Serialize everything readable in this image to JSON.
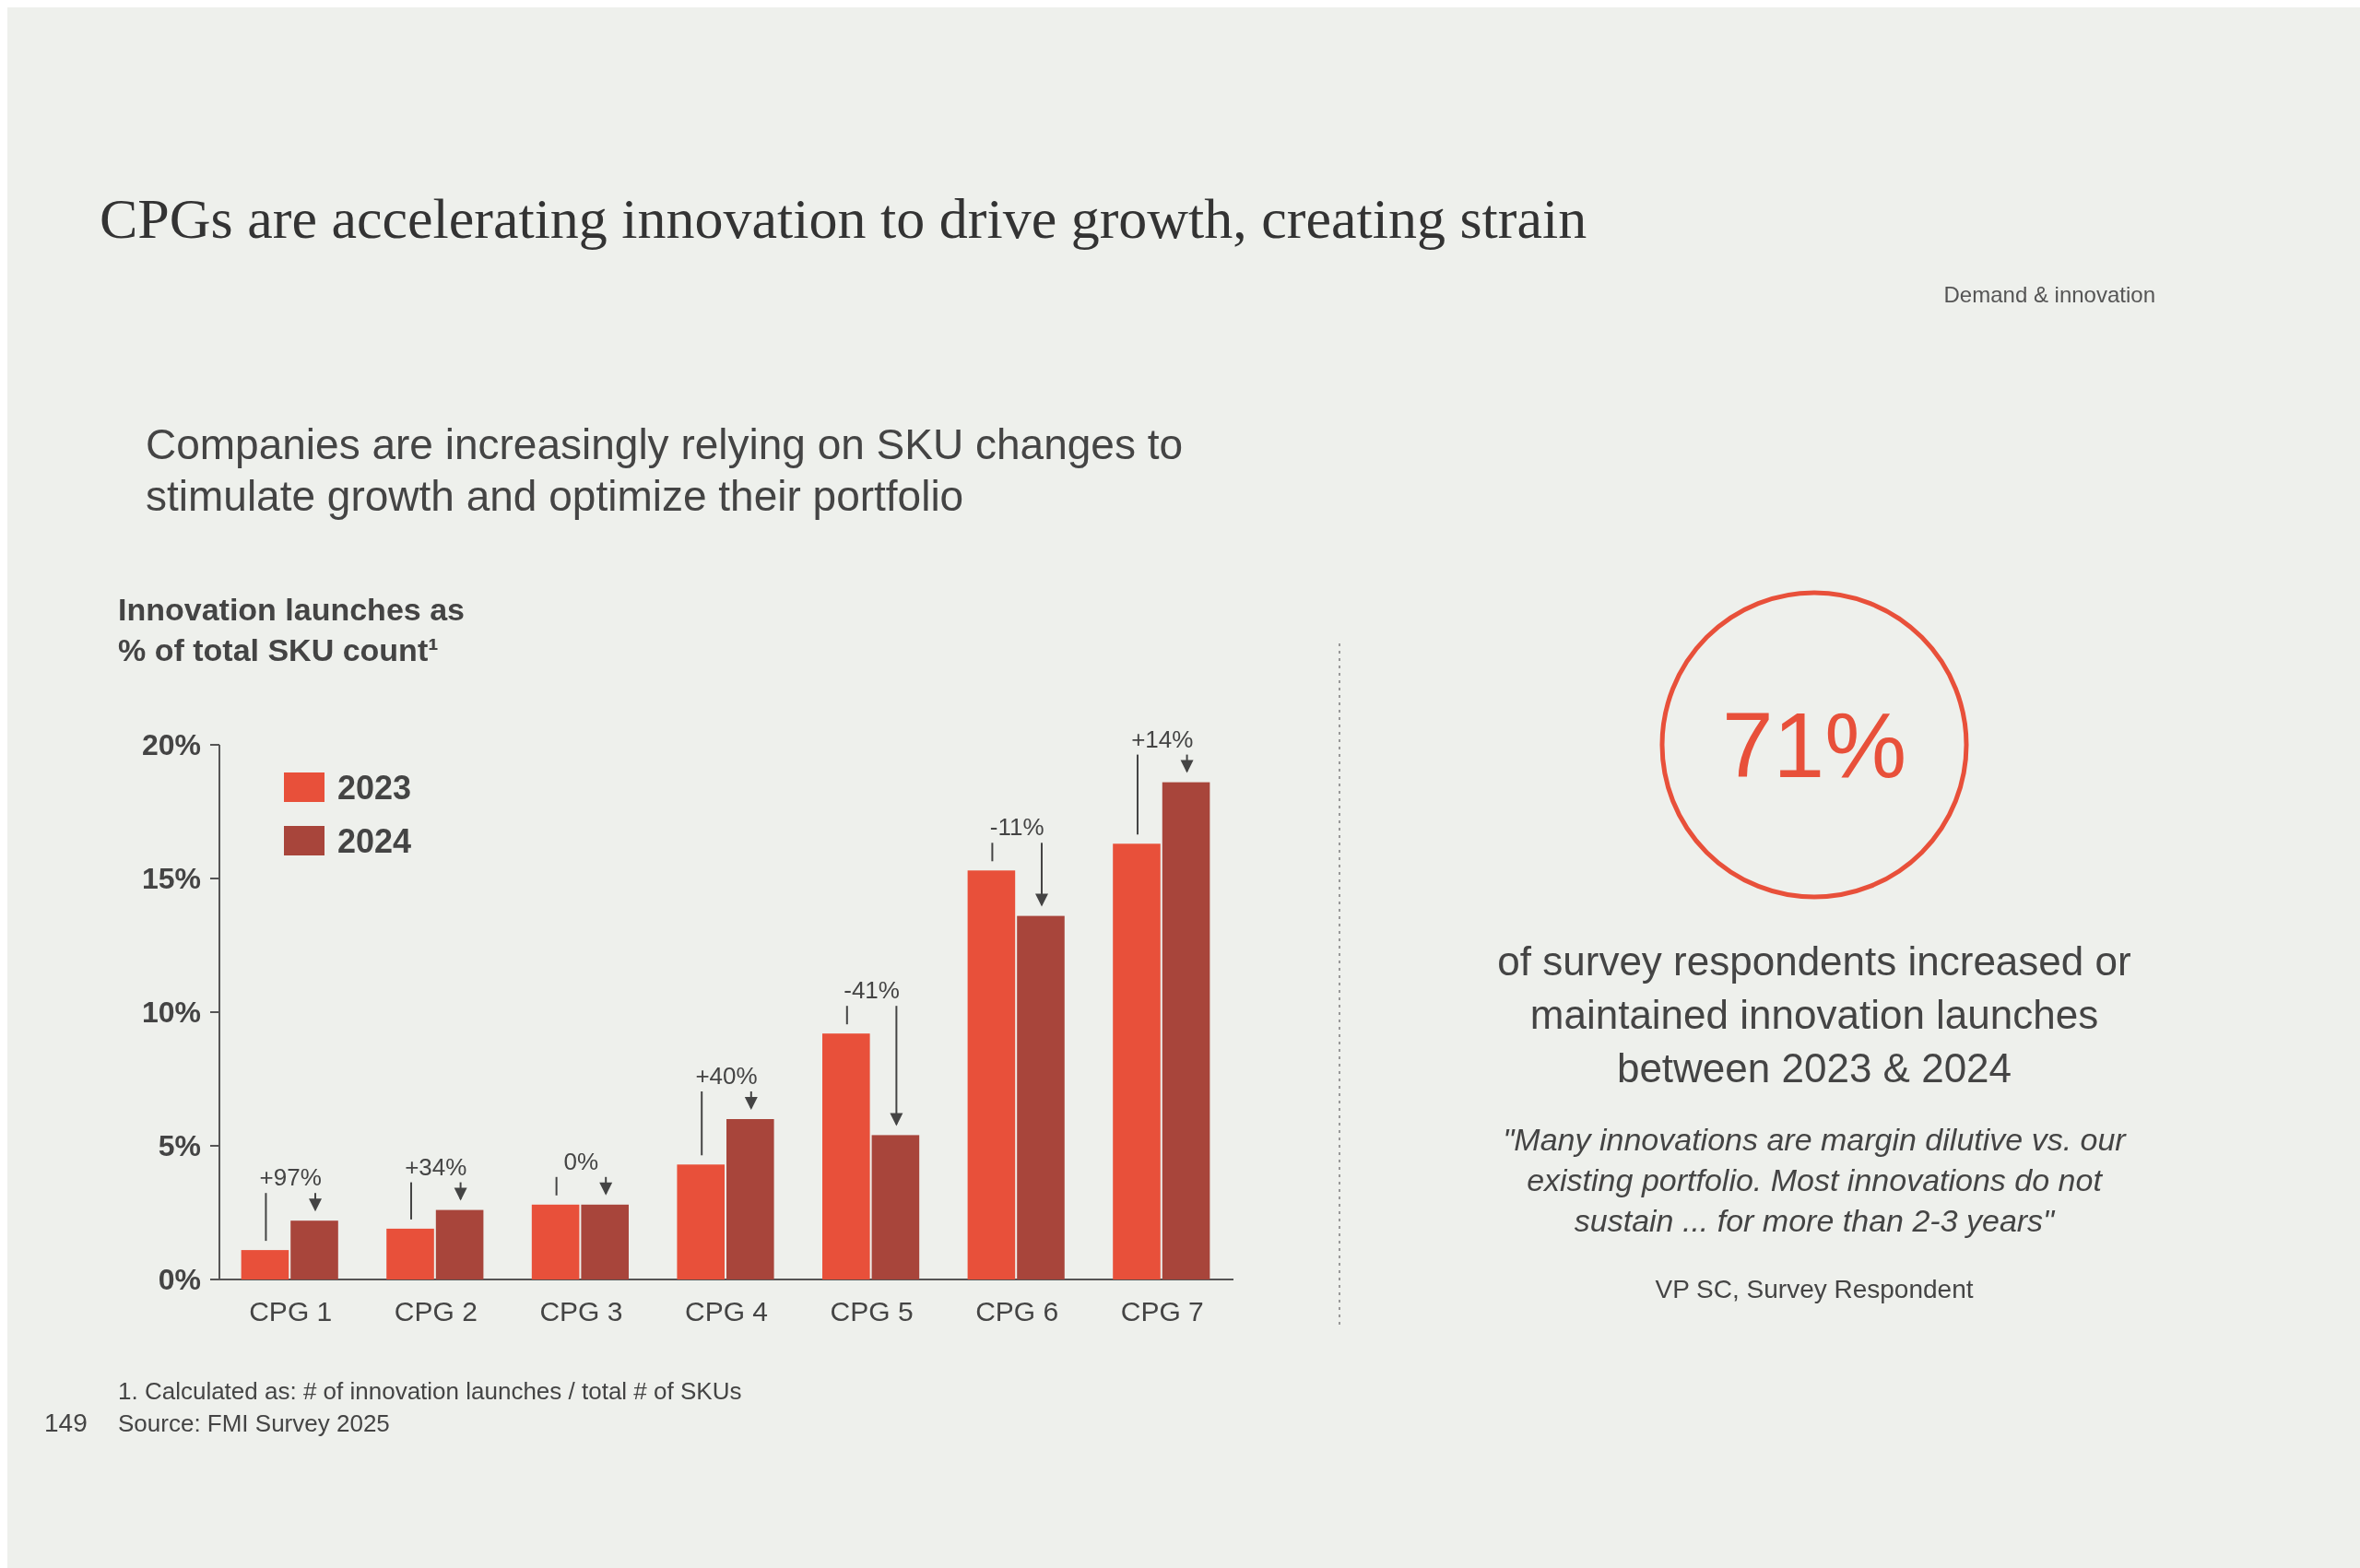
{
  "chart_data": {
    "type": "bar",
    "title": "CPGs are accelerating innovation to drive growth, creating strain",
    "subtitle": "Companies are increasingly relying on SKU changes to stimulate growth and optimize their portfolio",
    "ylabel": "Innovation launches as % of total SKU count¹",
    "categories": [
      "CPG 1",
      "CPG 2",
      "CPG 3",
      "CPG 4",
      "CPG 5",
      "CPG 6",
      "CPG 7"
    ],
    "series": [
      {
        "name": "2023",
        "color": "#e8503a",
        "values": [
          1.1,
          1.9,
          2.8,
          4.3,
          9.2,
          15.3,
          16.3
        ]
      },
      {
        "name": "2024",
        "color": "#a8453b",
        "values": [
          2.2,
          2.6,
          2.8,
          6.0,
          5.4,
          13.6,
          18.6
        ]
      }
    ],
    "ylim": [
      0,
      20
    ],
    "yticks": [
      {
        "value": 0,
        "label": "0%"
      },
      {
        "value": 5,
        "label": "5%"
      },
      {
        "value": 10,
        "label": "10%"
      },
      {
        "value": 15,
        "label": "15%"
      },
      {
        "value": 20,
        "label": "20%"
      }
    ],
    "grid": false,
    "legend": "top left",
    "annotations": [
      {
        "text": "+97%",
        "x": "CPG 1",
        "y": 2.2
      },
      {
        "text": "+34%",
        "x": "CPG 2",
        "y": 2.6
      },
      {
        "text": "0%",
        "x": "CPG 3",
        "y": 2.8
      },
      {
        "text": "+40%",
        "x": "CPG 4",
        "y": 6.0
      },
      {
        "text": "-41%",
        "x": "CPG 5",
        "y": 9.2
      },
      {
        "text": "-11%",
        "x": "CPG 6",
        "y": 15.3
      },
      {
        "text": "+14%",
        "x": "CPG 7",
        "y": 18.6
      },
      "Demand & innovation",
      "71%",
      "of survey respondents increased or maintained innovation launches between 2023 & 2024",
      "\"Many innovations are margin dilutive vs. our existing portfolio. Most innovations do not sustain ... for more than 2-3 years\"",
      "VP SC, Survey Respondent",
      "1. Calculated as: # of innovation launches / total # of SKUs",
      "Source: FMI Survey 2025",
      "149"
    ]
  }
}
